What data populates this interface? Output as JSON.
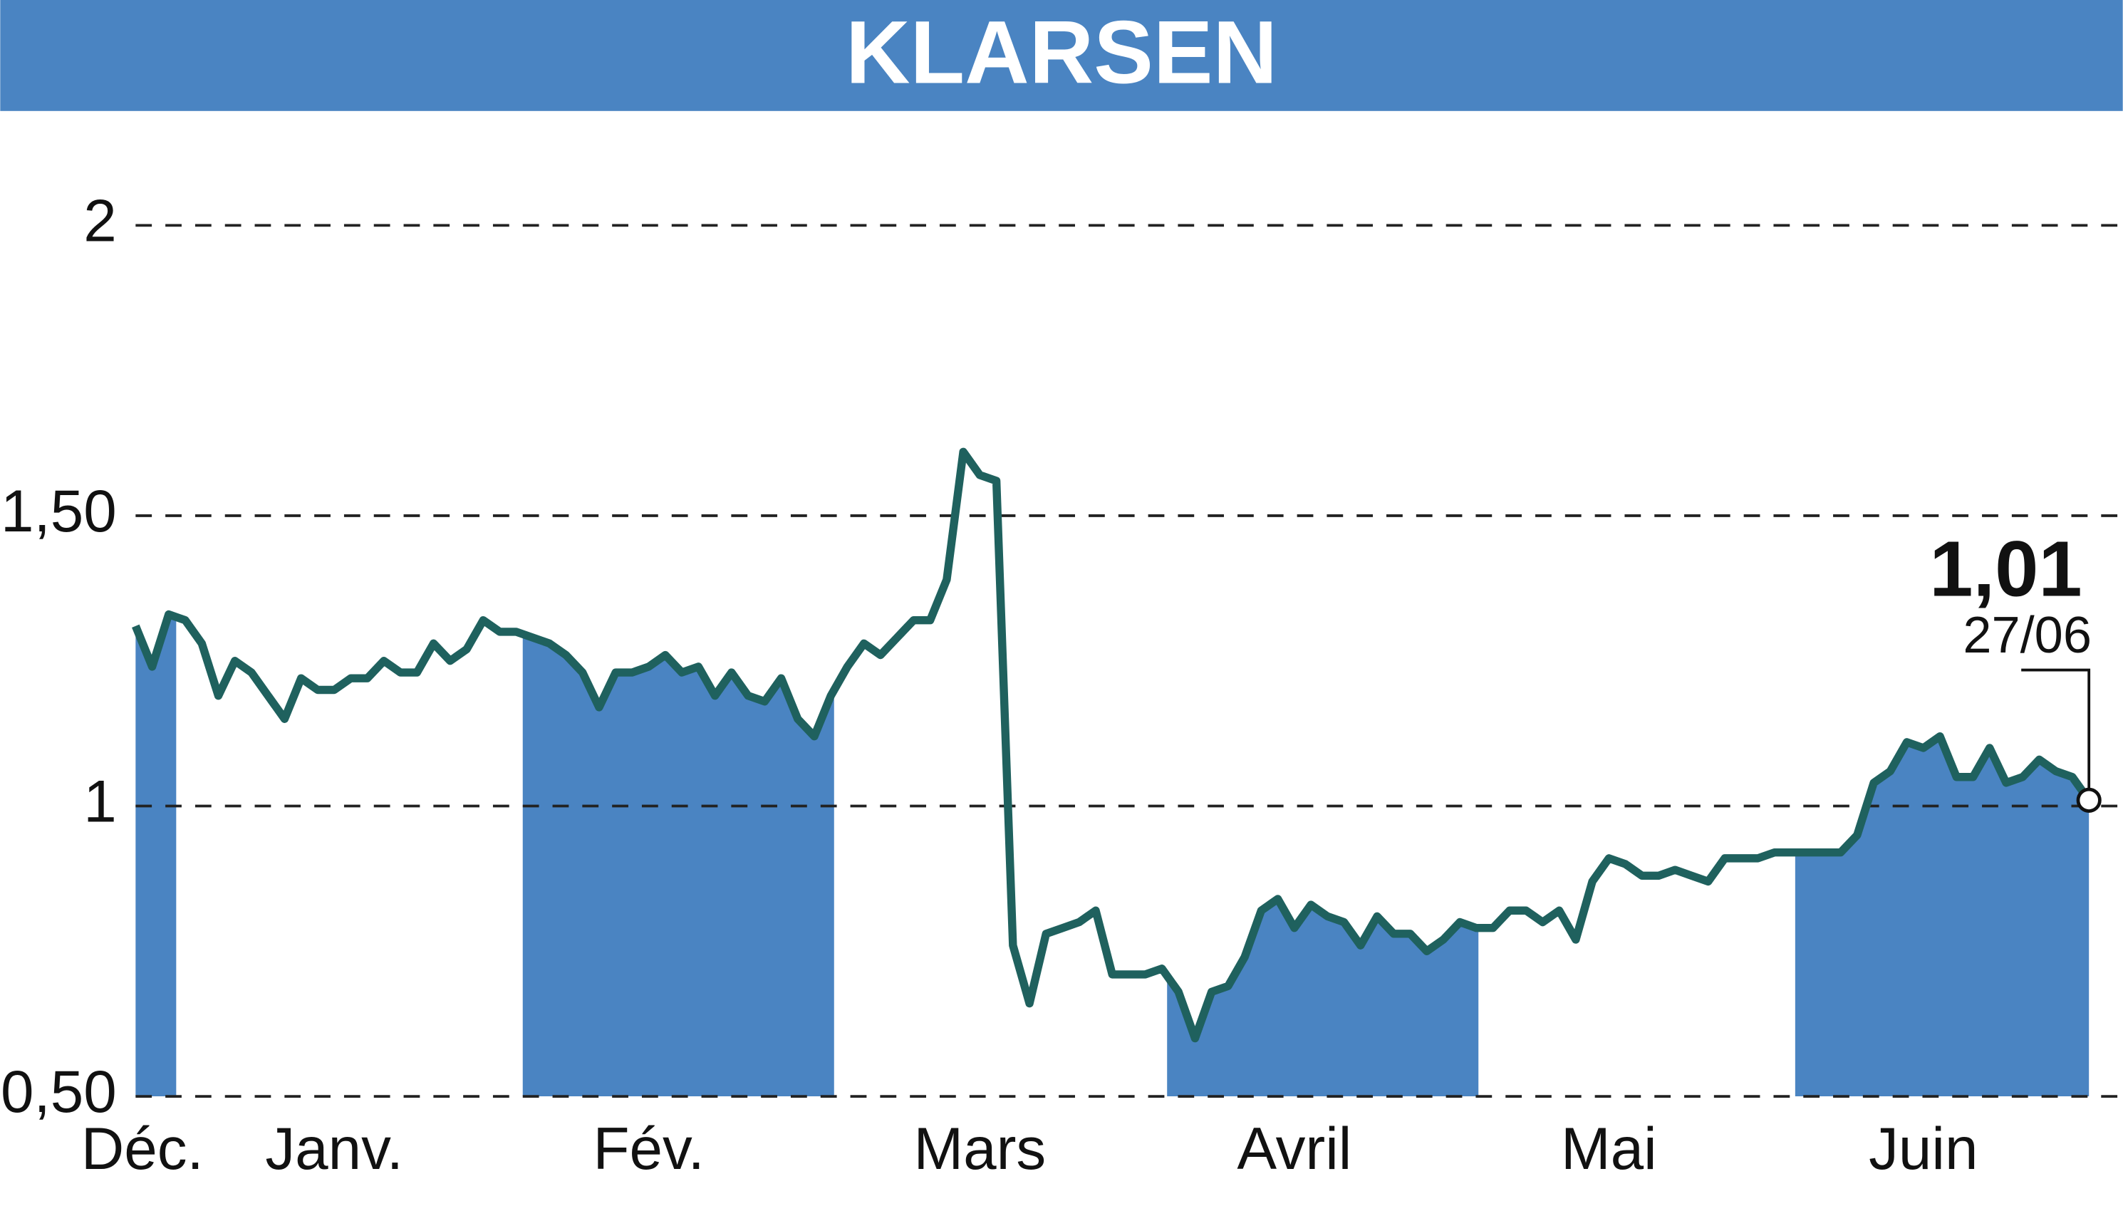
{
  "chart_data": {
    "type": "line",
    "title": "KLARSEN",
    "categories": [
      "Déc.",
      null,
      null,
      null,
      null,
      null,
      null,
      null,
      null,
      null,
      null,
      null,
      "Janv.",
      null,
      null,
      null,
      null,
      null,
      null,
      null,
      null,
      null,
      null,
      null,
      null,
      null,
      null,
      null,
      null,
      null,
      null,
      "Fév.",
      null,
      null,
      null,
      null,
      null,
      null,
      null,
      null,
      null,
      null,
      null,
      null,
      null,
      null,
      null,
      null,
      null,
      null,
      null,
      "Mars",
      null,
      null,
      null,
      null,
      null,
      null,
      null,
      null,
      null,
      null,
      null,
      null,
      null,
      null,
      null,
      null,
      null,
      null,
      "Avril",
      null,
      null,
      null,
      null,
      null,
      null,
      null,
      null,
      null,
      null,
      null,
      null,
      null,
      null,
      null,
      null,
      null,
      null,
      "Mai",
      null,
      null,
      null,
      null,
      null,
      null,
      null,
      null,
      null,
      null,
      null,
      null,
      null,
      null,
      null,
      null,
      null,
      null,
      "Juin",
      null,
      null,
      null,
      null,
      null,
      null,
      null,
      null,
      null,
      null
    ],
    "series": [
      {
        "color": "#1f615e",
        "values": [
          1.31,
          1.24,
          1.33,
          1.32,
          1.28,
          1.19,
          1.25,
          1.23,
          1.19,
          1.15,
          1.22,
          1.2,
          1.2,
          1.22,
          1.22,
          1.25,
          1.23,
          1.23,
          1.28,
          1.25,
          1.27,
          1.32,
          1.3,
          1.3,
          1.29,
          1.28,
          1.26,
          1.23,
          1.17,
          1.23,
          1.23,
          1.24,
          1.26,
          1.23,
          1.24,
          1.19,
          1.23,
          1.19,
          1.18,
          1.22,
          1.15,
          1.12,
          1.19,
          1.24,
          1.28,
          1.26,
          1.29,
          1.32,
          1.32,
          1.39,
          1.61,
          1.57,
          1.56,
          0.76,
          0.66,
          0.78,
          0.79,
          0.8,
          0.82,
          0.71,
          0.71,
          0.71,
          0.72,
          0.68,
          0.6,
          0.68,
          0.69,
          0.74,
          0.82,
          0.84,
          0.79,
          0.83,
          0.81,
          0.8,
          0.76,
          0.81,
          0.78,
          0.78,
          0.75,
          0.77,
          0.8,
          0.79,
          0.79,
          0.82,
          0.82,
          0.8,
          0.82,
          0.77,
          0.87,
          0.91,
          0.9,
          0.88,
          0.88,
          0.89,
          0.88,
          0.87,
          0.91,
          0.91,
          0.91,
          0.92,
          0.92,
          0.92,
          0.92,
          0.92,
          0.95,
          1.04,
          1.06,
          1.11,
          1.1,
          1.12,
          1.05,
          1.05,
          1.1,
          1.04,
          1.05,
          1.08,
          1.06,
          1.05,
          1.01
        ]
      }
    ],
    "annotation": {
      "value": "1,01",
      "date": "27/06"
    },
    "ylim": [
      0.5,
      2.15
    ],
    "yticks": [
      {
        "value": 0.5,
        "label": "0,50"
      },
      1,
      {
        "value": 1.5,
        "label": "1,50"
      },
      2
    ],
    "grid": true,
    "band_color": "#4a84c2",
    "header_color": "#4a84c2"
  }
}
